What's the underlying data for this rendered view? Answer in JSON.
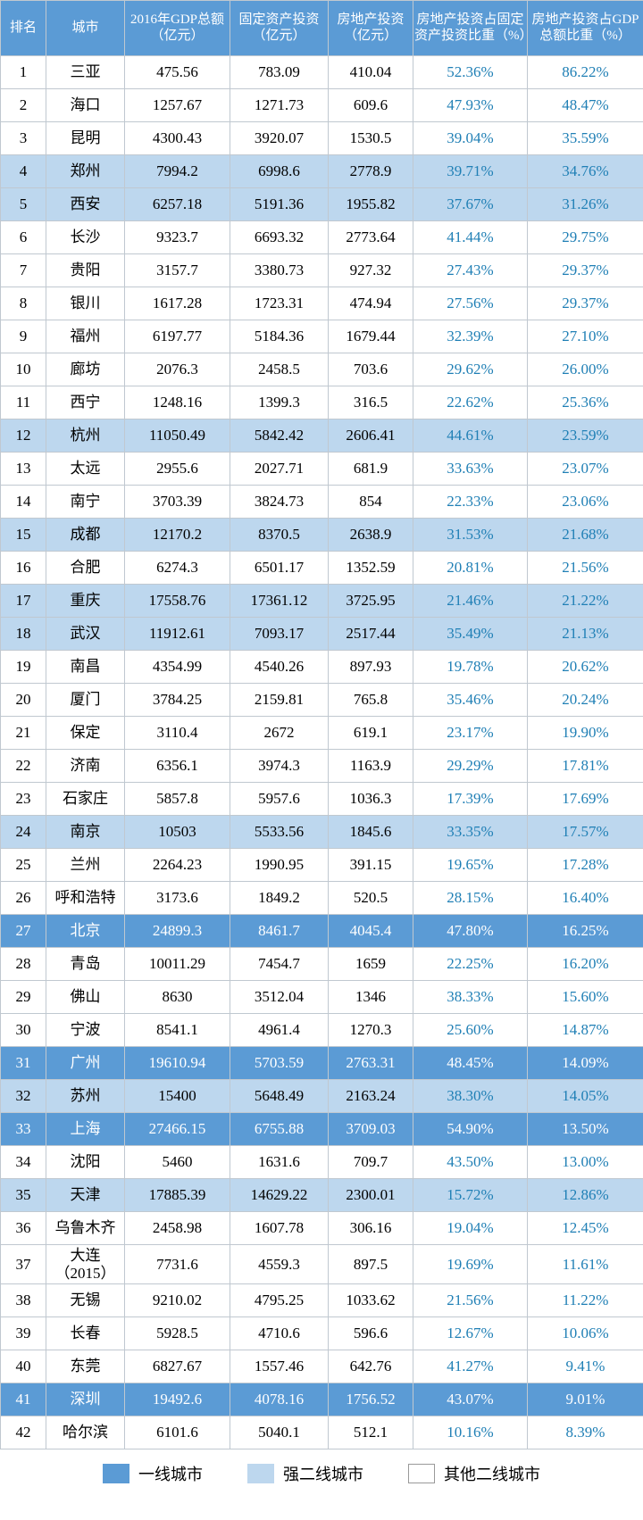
{
  "colors": {
    "header_bg": "#5b9bd5",
    "header_fg": "#ffffff",
    "tier1_bg": "#5b9bd5",
    "tier1_fg": "#ffffff",
    "tier2_bg": "#bdd7ee",
    "pct_fg": "#1f7fb5",
    "border": "#c0c8d0",
    "bg": "#ffffff"
  },
  "headers": {
    "rank": "排名",
    "city": "城市",
    "gdp": "2016年GDP总额（亿元）",
    "fai": "固定资产投资（亿元）",
    "rei": "房地产投资（亿元）",
    "pct1": "房地产投资占固定资产投资比重（%）",
    "pct2": "房地产投资占GDP总额比重（%）"
  },
  "legend": {
    "tier1": "一线城市",
    "tier2": "强二线城市",
    "tier3": "其他二线城市"
  },
  "rows": [
    {
      "rank": "1",
      "city": "三亚",
      "gdp": "475.56",
      "fai": "783.09",
      "rei": "410.04",
      "pct1": "52.36%",
      "pct2": "86.22%",
      "tier": 3
    },
    {
      "rank": "2",
      "city": "海口",
      "gdp": "1257.67",
      "fai": "1271.73",
      "rei": "609.6",
      "pct1": "47.93%",
      "pct2": "48.47%",
      "tier": 3
    },
    {
      "rank": "3",
      "city": "昆明",
      "gdp": "4300.43",
      "fai": "3920.07",
      "rei": "1530.5",
      "pct1": "39.04%",
      "pct2": "35.59%",
      "tier": 3
    },
    {
      "rank": "4",
      "city": "郑州",
      "gdp": "7994.2",
      "fai": "6998.6",
      "rei": "2778.9",
      "pct1": "39.71%",
      "pct2": "34.76%",
      "tier": 2
    },
    {
      "rank": "5",
      "city": "西安",
      "gdp": "6257.18",
      "fai": "5191.36",
      "rei": "1955.82",
      "pct1": "37.67%",
      "pct2": "31.26%",
      "tier": 2
    },
    {
      "rank": "6",
      "city": "长沙",
      "gdp": "9323.7",
      "fai": "6693.32",
      "rei": "2773.64",
      "pct1": "41.44%",
      "pct2": "29.75%",
      "tier": 3
    },
    {
      "rank": "7",
      "city": "贵阳",
      "gdp": "3157.7",
      "fai": "3380.73",
      "rei": "927.32",
      "pct1": "27.43%",
      "pct2": "29.37%",
      "tier": 3
    },
    {
      "rank": "8",
      "city": "银川",
      "gdp": "1617.28",
      "fai": "1723.31",
      "rei": "474.94",
      "pct1": "27.56%",
      "pct2": "29.37%",
      "tier": 3
    },
    {
      "rank": "9",
      "city": "福州",
      "gdp": "6197.77",
      "fai": "5184.36",
      "rei": "1679.44",
      "pct1": "32.39%",
      "pct2": "27.10%",
      "tier": 3
    },
    {
      "rank": "10",
      "city": "廊坊",
      "gdp": "2076.3",
      "fai": "2458.5",
      "rei": "703.6",
      "pct1": "29.62%",
      "pct2": "26.00%",
      "tier": 3
    },
    {
      "rank": "11",
      "city": "西宁",
      "gdp": "1248.16",
      "fai": "1399.3",
      "rei": "316.5",
      "pct1": "22.62%",
      "pct2": "25.36%",
      "tier": 3
    },
    {
      "rank": "12",
      "city": "杭州",
      "gdp": "11050.49",
      "fai": "5842.42",
      "rei": "2606.41",
      "pct1": "44.61%",
      "pct2": "23.59%",
      "tier": 2
    },
    {
      "rank": "13",
      "city": "太远",
      "gdp": "2955.6",
      "fai": "2027.71",
      "rei": "681.9",
      "pct1": "33.63%",
      "pct2": "23.07%",
      "tier": 3
    },
    {
      "rank": "14",
      "city": "南宁",
      "gdp": "3703.39",
      "fai": "3824.73",
      "rei": "854",
      "pct1": "22.33%",
      "pct2": "23.06%",
      "tier": 3
    },
    {
      "rank": "15",
      "city": "成都",
      "gdp": "12170.2",
      "fai": "8370.5",
      "rei": "2638.9",
      "pct1": "31.53%",
      "pct2": "21.68%",
      "tier": 2
    },
    {
      "rank": "16",
      "city": "合肥",
      "gdp": "6274.3",
      "fai": "6501.17",
      "rei": "1352.59",
      "pct1": "20.81%",
      "pct2": "21.56%",
      "tier": 3
    },
    {
      "rank": "17",
      "city": "重庆",
      "gdp": "17558.76",
      "fai": "17361.12",
      "rei": "3725.95",
      "pct1": "21.46%",
      "pct2": "21.22%",
      "tier": 2
    },
    {
      "rank": "18",
      "city": "武汉",
      "gdp": "11912.61",
      "fai": "7093.17",
      "rei": "2517.44",
      "pct1": "35.49%",
      "pct2": "21.13%",
      "tier": 2
    },
    {
      "rank": "19",
      "city": "南昌",
      "gdp": "4354.99",
      "fai": "4540.26",
      "rei": "897.93",
      "pct1": "19.78%",
      "pct2": "20.62%",
      "tier": 3
    },
    {
      "rank": "20",
      "city": "厦门",
      "gdp": "3784.25",
      "fai": "2159.81",
      "rei": "765.8",
      "pct1": "35.46%",
      "pct2": "20.24%",
      "tier": 3
    },
    {
      "rank": "21",
      "city": "保定",
      "gdp": "3110.4",
      "fai": "2672",
      "rei": "619.1",
      "pct1": "23.17%",
      "pct2": "19.90%",
      "tier": 3
    },
    {
      "rank": "22",
      "city": "济南",
      "gdp": "6356.1",
      "fai": "3974.3",
      "rei": "1163.9",
      "pct1": "29.29%",
      "pct2": "17.81%",
      "tier": 3
    },
    {
      "rank": "23",
      "city": "石家庄",
      "gdp": "5857.8",
      "fai": "5957.6",
      "rei": "1036.3",
      "pct1": "17.39%",
      "pct2": "17.69%",
      "tier": 3
    },
    {
      "rank": "24",
      "city": "南京",
      "gdp": "10503",
      "fai": "5533.56",
      "rei": "1845.6",
      "pct1": "33.35%",
      "pct2": "17.57%",
      "tier": 2
    },
    {
      "rank": "25",
      "city": "兰州",
      "gdp": "2264.23",
      "fai": "1990.95",
      "rei": "391.15",
      "pct1": "19.65%",
      "pct2": "17.28%",
      "tier": 3
    },
    {
      "rank": "26",
      "city": "呼和浩特",
      "gdp": "3173.6",
      "fai": "1849.2",
      "rei": "520.5",
      "pct1": "28.15%",
      "pct2": "16.40%",
      "tier": 3
    },
    {
      "rank": "27",
      "city": "北京",
      "gdp": "24899.3",
      "fai": "8461.7",
      "rei": "4045.4",
      "pct1": "47.80%",
      "pct2": "16.25%",
      "tier": 1
    },
    {
      "rank": "28",
      "city": "青岛",
      "gdp": "10011.29",
      "fai": "7454.7",
      "rei": "1659",
      "pct1": "22.25%",
      "pct2": "16.20%",
      "tier": 3
    },
    {
      "rank": "29",
      "city": "佛山",
      "gdp": "8630",
      "fai": "3512.04",
      "rei": "1346",
      "pct1": "38.33%",
      "pct2": "15.60%",
      "tier": 3
    },
    {
      "rank": "30",
      "city": "宁波",
      "gdp": "8541.1",
      "fai": "4961.4",
      "rei": "1270.3",
      "pct1": "25.60%",
      "pct2": "14.87%",
      "tier": 3
    },
    {
      "rank": "31",
      "city": "广州",
      "gdp": "19610.94",
      "fai": "5703.59",
      "rei": "2763.31",
      "pct1": "48.45%",
      "pct2": "14.09%",
      "tier": 1
    },
    {
      "rank": "32",
      "city": "苏州",
      "gdp": "15400",
      "fai": "5648.49",
      "rei": "2163.24",
      "pct1": "38.30%",
      "pct2": "14.05%",
      "tier": 2
    },
    {
      "rank": "33",
      "city": "上海",
      "gdp": "27466.15",
      "fai": "6755.88",
      "rei": "3709.03",
      "pct1": "54.90%",
      "pct2": "13.50%",
      "tier": 1
    },
    {
      "rank": "34",
      "city": "沈阳",
      "gdp": "5460",
      "fai": "1631.6",
      "rei": "709.7",
      "pct1": "43.50%",
      "pct2": "13.00%",
      "tier": 3
    },
    {
      "rank": "35",
      "city": "天津",
      "gdp": "17885.39",
      "fai": "14629.22",
      "rei": "2300.01",
      "pct1": "15.72%",
      "pct2": "12.86%",
      "tier": 2
    },
    {
      "rank": "36",
      "city": "乌鲁木齐",
      "gdp": "2458.98",
      "fai": "1607.78",
      "rei": "306.16",
      "pct1": "19.04%",
      "pct2": "12.45%",
      "tier": 3
    },
    {
      "rank": "37",
      "city": "大连（2015）",
      "gdp": "7731.6",
      "fai": "4559.3",
      "rei": "897.5",
      "pct1": "19.69%",
      "pct2": "11.61%",
      "tier": 3
    },
    {
      "rank": "38",
      "city": "无锡",
      "gdp": "9210.02",
      "fai": "4795.25",
      "rei": "1033.62",
      "pct1": "21.56%",
      "pct2": "11.22%",
      "tier": 3
    },
    {
      "rank": "39",
      "city": "长春",
      "gdp": "5928.5",
      "fai": "4710.6",
      "rei": "596.6",
      "pct1": "12.67%",
      "pct2": "10.06%",
      "tier": 3
    },
    {
      "rank": "40",
      "city": "东莞",
      "gdp": "6827.67",
      "fai": "1557.46",
      "rei": "642.76",
      "pct1": "41.27%",
      "pct2": "9.41%",
      "tier": 3
    },
    {
      "rank": "41",
      "city": "深圳",
      "gdp": "19492.6",
      "fai": "4078.16",
      "rei": "1756.52",
      "pct1": "43.07%",
      "pct2": "9.01%",
      "tier": 1
    },
    {
      "rank": "42",
      "city": "哈尔滨",
      "gdp": "6101.6",
      "fai": "5040.1",
      "rei": "512.1",
      "pct1": "10.16%",
      "pct2": "8.39%",
      "tier": 3
    }
  ]
}
